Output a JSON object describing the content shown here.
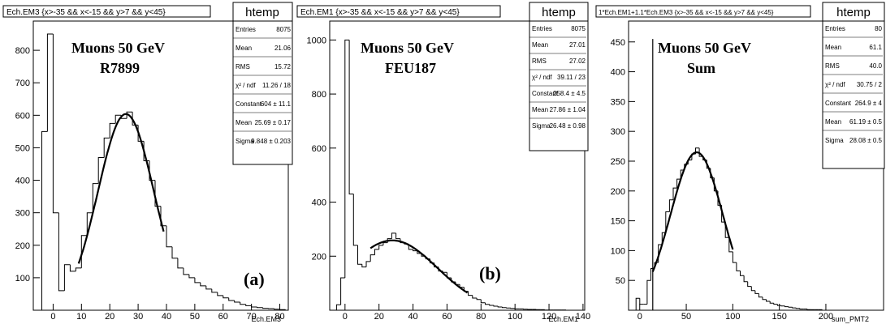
{
  "chart_data": [
    {
      "type": "histogram",
      "cut_title": "Ech.EM3 {x>-35 && x<-15 && y>7 && y<45}",
      "stats_title": "htemp",
      "stats": [
        {
          "label": "Entries",
          "value": "8075"
        },
        {
          "label": "Mean",
          "value": "21.06"
        },
        {
          "label": "RMS",
          "value": "15.72"
        },
        {
          "label": "χ² / ndf",
          "value": "11.26 / 18"
        },
        {
          "label": "Constant",
          "value": "604 ± 11.1"
        },
        {
          "label": "Mean",
          "value": "25.69 ± 0.17"
        },
        {
          "label": "Sigma",
          "value": "9.848 ± 0.203"
        }
      ],
      "annotation_lines": [
        "Muons 50 GeV",
        "R7899"
      ],
      "panel_label": "(a)",
      "xlabel": "Ech.EM3",
      "xlim": [
        -7,
        83
      ],
      "ylim": [
        0,
        890
      ],
      "xticks": [
        "0",
        "10",
        "20",
        "30",
        "40",
        "50",
        "60",
        "70",
        "80"
      ],
      "yticks": [
        "100",
        "200",
        "300",
        "400",
        "500",
        "600",
        "700",
        "800"
      ],
      "bin_width": 2,
      "bins": [
        [
          -6,
          0
        ],
        [
          -4,
          550
        ],
        [
          -2,
          850
        ],
        [
          0,
          300
        ],
        [
          2,
          60
        ],
        [
          4,
          140
        ],
        [
          6,
          120
        ],
        [
          8,
          130
        ],
        [
          10,
          230
        ],
        [
          12,
          300
        ],
        [
          14,
          390
        ],
        [
          16,
          470
        ],
        [
          18,
          530
        ],
        [
          20,
          575
        ],
        [
          22,
          600
        ],
        [
          24,
          590
        ],
        [
          26,
          610
        ],
        [
          28,
          570
        ],
        [
          30,
          520
        ],
        [
          32,
          460
        ],
        [
          34,
          400
        ],
        [
          36,
          320
        ],
        [
          38,
          260
        ],
        [
          40,
          195
        ],
        [
          42,
          160
        ],
        [
          44,
          130
        ],
        [
          46,
          110
        ],
        [
          48,
          100
        ],
        [
          50,
          85
        ],
        [
          52,
          75
        ],
        [
          54,
          65
        ],
        [
          56,
          55
        ],
        [
          58,
          45
        ],
        [
          60,
          38
        ],
        [
          62,
          30
        ],
        [
          64,
          25
        ],
        [
          66,
          18
        ],
        [
          68,
          14
        ],
        [
          70,
          10
        ],
        [
          72,
          8
        ],
        [
          74,
          6
        ],
        [
          76,
          5
        ],
        [
          78,
          3
        ],
        [
          80,
          2
        ]
      ],
      "fit": {
        "constant": 604,
        "mean": 25.69,
        "sigma": 9.848,
        "range": [
          9,
          39
        ]
      }
    },
    {
      "type": "histogram",
      "cut_title": "Ech.EM1 {x>-35 && x<-15 && y>7 && y<45}",
      "stats_title": "htemp",
      "stats": [
        {
          "label": "Entries",
          "value": "8075"
        },
        {
          "label": "Mean",
          "value": "27.01"
        },
        {
          "label": "RMS",
          "value": "27.02"
        },
        {
          "label": "χ² / ndf",
          "value": "39.11 / 23"
        },
        {
          "label": "Constant",
          "value": "258.4 ± 4.5"
        },
        {
          "label": "Mean",
          "value": "27.86 ± 1.04"
        },
        {
          "label": "Sigma",
          "value": "26.48 ± 0.98"
        }
      ],
      "annotation_lines": [
        "Muons 50 GeV",
        "FEU187"
      ],
      "panel_label": "(b)",
      "xlabel": "Ech.EM1",
      "xlim": [
        -9,
        141
      ],
      "ylim": [
        0,
        1070
      ],
      "xticks": [
        "0",
        "20",
        "40",
        "60",
        "80",
        "100",
        "120",
        "140"
      ],
      "yticks": [
        "200",
        "400",
        "600",
        "800",
        "1000"
      ],
      "bin_width": 2.5,
      "bins": [
        [
          -7.5,
          0
        ],
        [
          -5,
          20
        ],
        [
          -2.5,
          120
        ],
        [
          0,
          1000
        ],
        [
          2.5,
          430
        ],
        [
          5,
          240
        ],
        [
          7.5,
          170
        ],
        [
          10,
          160
        ],
        [
          12.5,
          180
        ],
        [
          15,
          205
        ],
        [
          17.5,
          225
        ],
        [
          20,
          240
        ],
        [
          22.5,
          250
        ],
        [
          25,
          265
        ],
        [
          27.5,
          285
        ],
        [
          30,
          265
        ],
        [
          32.5,
          250
        ],
        [
          35,
          245
        ],
        [
          37.5,
          225
        ],
        [
          40,
          220
        ],
        [
          42.5,
          210
        ],
        [
          45,
          200
        ],
        [
          47.5,
          190
        ],
        [
          50,
          175
        ],
        [
          52.5,
          160
        ],
        [
          55,
          145
        ],
        [
          57.5,
          140
        ],
        [
          60,
          120
        ],
        [
          62.5,
          105
        ],
        [
          65,
          95
        ],
        [
          67.5,
          85
        ],
        [
          70,
          70
        ],
        [
          72.5,
          55
        ],
        [
          75,
          45
        ],
        [
          77.5,
          40
        ],
        [
          80,
          28
        ],
        [
          82.5,
          22
        ],
        [
          85,
          18
        ],
        [
          87.5,
          15
        ],
        [
          90,
          12
        ],
        [
          92.5,
          10
        ],
        [
          95,
          8
        ],
        [
          97.5,
          7
        ],
        [
          100,
          5
        ],
        [
          102.5,
          5
        ],
        [
          105,
          4
        ],
        [
          107.5,
          3
        ],
        [
          110,
          3
        ],
        [
          112.5,
          2
        ],
        [
          115,
          2
        ],
        [
          117.5,
          1
        ],
        [
          120,
          1
        ],
        [
          122.5,
          1
        ],
        [
          125,
          1
        ],
        [
          127.5,
          1
        ],
        [
          130,
          0
        ]
      ],
      "fit": {
        "constant": 258.4,
        "mean": 27.86,
        "sigma": 26.48,
        "range": [
          15,
          72
        ]
      }
    },
    {
      "type": "histogram",
      "cut_title": "1*Ech.EM1+1.1*Ech.EM3 {x>-35 && x<-15 && y>7 && y<45}",
      "stats_title": "htemp",
      "stats": [
        {
          "label": "Entries",
          "value": "80"
        },
        {
          "label": "Mean",
          "value": "61.1"
        },
        {
          "label": "RMS",
          "value": "40.0"
        },
        {
          "label": "χ² / ndf",
          "value": "30.75 / 2"
        },
        {
          "label": "Constant",
          "value": "264.9 ± 4"
        },
        {
          "label": "Mean",
          "value": "61.19 ± 0.5"
        },
        {
          "label": "Sigma",
          "value": "28.08 ± 0.5"
        }
      ],
      "annotation_lines": [
        "Muons 50 GeV",
        "Sum"
      ],
      "panel_label": "",
      "xlabel": "sum_PMT2",
      "xlim": [
        -12,
        262
      ],
      "ylim": [
        0,
        485
      ],
      "xticks": [
        "0",
        "50",
        "100",
        "150",
        "200"
      ],
      "yticks": [
        "50",
        "100",
        "150",
        "200",
        "250",
        "300",
        "350",
        "400",
        "450"
      ],
      "bin_width": 4,
      "bins": [
        [
          -8,
          0
        ],
        [
          -4,
          20
        ],
        [
          0,
          10
        ],
        [
          4,
          10
        ],
        [
          8,
          50
        ],
        [
          12,
          70
        ],
        [
          16,
          80
        ],
        [
          20,
          110
        ],
        [
          24,
          130
        ],
        [
          28,
          165
        ],
        [
          32,
          185
        ],
        [
          36,
          205
        ],
        [
          40,
          220
        ],
        [
          44,
          235
        ],
        [
          48,
          245
        ],
        [
          52,
          252
        ],
        [
          56,
          262
        ],
        [
          60,
          272
        ],
        [
          64,
          258
        ],
        [
          68,
          252
        ],
        [
          72,
          238
        ],
        [
          76,
          222
        ],
        [
          80,
          200
        ],
        [
          84,
          176
        ],
        [
          88,
          148
        ],
        [
          92,
          122
        ],
        [
          96,
          98
        ],
        [
          100,
          80
        ],
        [
          104,
          66
        ],
        [
          108,
          58
        ],
        [
          112,
          48
        ],
        [
          116,
          40
        ],
        [
          120,
          33
        ],
        [
          124,
          28
        ],
        [
          128,
          22
        ],
        [
          132,
          18
        ],
        [
          136,
          15
        ],
        [
          140,
          12
        ],
        [
          144,
          10
        ],
        [
          148,
          8
        ],
        [
          152,
          7
        ],
        [
          156,
          6
        ],
        [
          160,
          5
        ],
        [
          164,
          4
        ],
        [
          168,
          3
        ],
        [
          172,
          2
        ],
        [
          176,
          2
        ],
        [
          180,
          1
        ],
        [
          184,
          1
        ],
        [
          188,
          1
        ],
        [
          192,
          1
        ],
        [
          196,
          0
        ]
      ],
      "spike": {
        "x": 14,
        "y": 455
      },
      "fit": {
        "constant": 264.9,
        "mean": 61.19,
        "sigma": 28.08,
        "range": [
          14,
          100
        ]
      }
    }
  ]
}
